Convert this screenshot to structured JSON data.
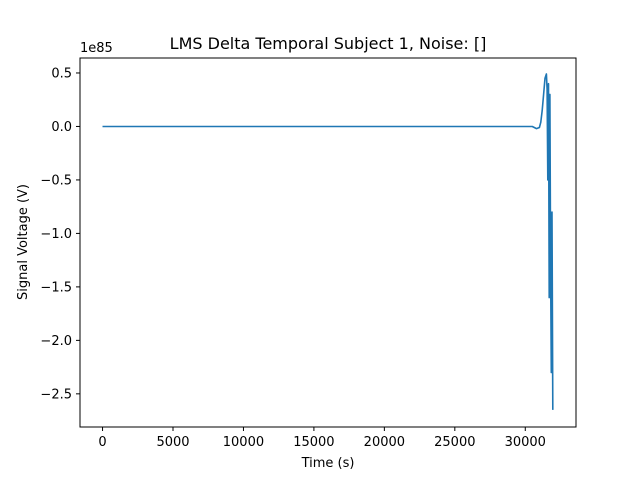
{
  "chart_data": {
    "type": "line",
    "title": "LMS Delta Temporal Subject 1, Noise: []",
    "xlabel": "Time (s)",
    "ylabel": "Signal Voltage (V)",
    "y_offset_label": "1e85",
    "y_scale_exponent": 85,
    "xlim": [
      -1600,
      33600
    ],
    "ylim": [
      -2.81,
      0.64
    ],
    "x_ticks": [
      0,
      5000,
      10000,
      15000,
      20000,
      25000,
      30000
    ],
    "x_tick_labels": [
      "0",
      "5000",
      "10000",
      "15000",
      "20000",
      "25000",
      "30000"
    ],
    "y_ticks": [
      0.5,
      0.0,
      -0.5,
      -1.0,
      -1.5,
      -2.0,
      -2.5
    ],
    "y_tick_labels": [
      "0.5",
      "0.0",
      "−0.5",
      "−1.0",
      "−1.5",
      "−2.0",
      "−2.5"
    ],
    "grid": false,
    "series": [
      {
        "color": "#1f77b4",
        "x": [
          0,
          5000,
          10000,
          15000,
          20000,
          25000,
          29000,
          30000,
          30500,
          30800,
          31000,
          31100,
          31200,
          31300,
          31400,
          31500,
          31550,
          31600,
          31650,
          31700,
          31750,
          31800,
          31850,
          31900,
          31950
        ],
        "y": [
          0,
          0,
          0,
          0,
          0,
          0,
          0,
          0,
          0,
          -0.02,
          -0.01,
          0.04,
          0.15,
          0.3,
          0.45,
          0.49,
          0.35,
          -0.5,
          0.4,
          -1.6,
          0.3,
          -1.3,
          -2.3,
          -0.8,
          -2.65
        ]
      }
    ]
  }
}
